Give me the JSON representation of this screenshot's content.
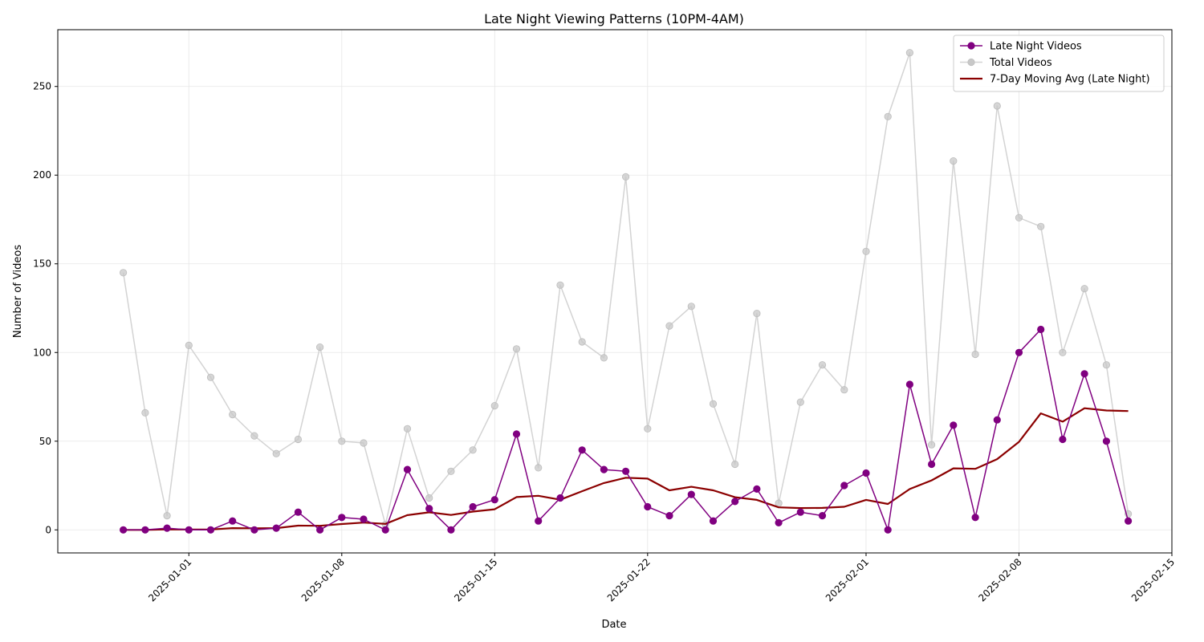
{
  "chart_data": {
    "type": "line",
    "title": "Late Night Viewing Patterns (10PM-4AM)",
    "xlabel": "Date",
    "ylabel": "Number of Videos",
    "x_start": "2024-12-29",
    "x": [
      "2024-12-29",
      "2024-12-30",
      "2024-12-31",
      "2025-01-01",
      "2025-01-02",
      "2025-01-03",
      "2025-01-04",
      "2025-01-05",
      "2025-01-06",
      "2025-01-07",
      "2025-01-08",
      "2025-01-09",
      "2025-01-10",
      "2025-01-11",
      "2025-01-12",
      "2025-01-13",
      "2025-01-14",
      "2025-01-15",
      "2025-01-16",
      "2025-01-17",
      "2025-01-18",
      "2025-01-19",
      "2025-01-20",
      "2025-01-21",
      "2025-01-22",
      "2025-01-23",
      "2025-01-24",
      "2025-01-25",
      "2025-01-26",
      "2025-01-27",
      "2025-01-28",
      "2025-01-29",
      "2025-01-30",
      "2025-01-31",
      "2025-02-01",
      "2025-02-02",
      "2025-02-03",
      "2025-02-04",
      "2025-02-05",
      "2025-02-06",
      "2025-02-07",
      "2025-02-08",
      "2025-02-09",
      "2025-02-10",
      "2025-02-11",
      "2025-02-12",
      "2025-02-13"
    ],
    "xlim": [
      "2024-12-26",
      "2025-02-15"
    ],
    "ylim": [
      -13,
      282
    ],
    "x_ticks": [
      "2025-01-01",
      "2025-01-08",
      "2025-01-15",
      "2025-01-22",
      "2025-02-01",
      "2025-02-08",
      "2025-02-15"
    ],
    "y_ticks": [
      0,
      50,
      100,
      150,
      200,
      250
    ],
    "grid": true,
    "legend_position": "top-right",
    "series": [
      {
        "name": "Late Night Videos",
        "color": "#800080",
        "marker": "circle",
        "values": [
          0,
          0,
          1,
          0,
          0,
          5,
          0,
          1,
          10,
          0,
          7,
          6,
          0,
          34,
          12,
          0,
          13,
          17,
          54,
          5,
          18,
          45,
          34,
          33,
          13,
          8,
          20,
          5,
          16,
          23,
          4,
          10,
          8,
          25,
          32,
          0,
          82,
          37,
          59,
          7,
          62,
          100,
          113,
          51,
          88,
          50,
          5
        ]
      },
      {
        "name": "Total Videos",
        "color": "#d3d3d3",
        "marker": "circle",
        "values": [
          145,
          66,
          8,
          104,
          86,
          65,
          53,
          43,
          51,
          103,
          50,
          49,
          3,
          57,
          18,
          33,
          45,
          70,
          102,
          35,
          138,
          106,
          97,
          199,
          57,
          115,
          126,
          71,
          37,
          122,
          15,
          72,
          93,
          79,
          157,
          233,
          269,
          48,
          208,
          99,
          239,
          176,
          171,
          100,
          136,
          93,
          9
        ]
      },
      {
        "name": "7-Day Moving Avg (Late Night)",
        "color": "#8b0000",
        "marker": "none",
        "values": [
          0,
          0,
          0.3,
          0.2,
          0.2,
          1.0,
          0.9,
          1.0,
          2.4,
          2.3,
          3.3,
          4.1,
          3.4,
          8.3,
          9.9,
          8.4,
          10.3,
          11.6,
          18.5,
          19.2,
          17.0,
          21.8,
          26.4,
          29.4,
          28.9,
          22.3,
          24.3,
          22.3,
          18.4,
          16.9,
          12.7,
          12.3,
          12.4,
          13.0,
          16.9,
          14.6,
          23.0,
          27.9,
          34.7,
          34.4,
          39.9,
          49.6,
          65.7,
          61.0,
          68.6,
          67.3,
          67.0
        ]
      }
    ]
  }
}
